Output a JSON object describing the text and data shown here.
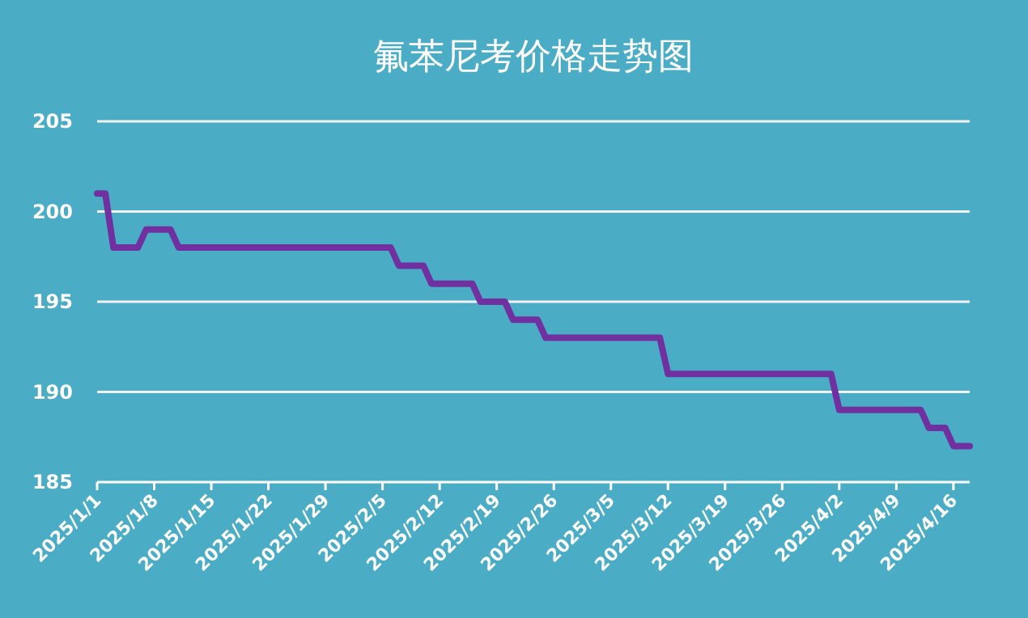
{
  "chart_data": {
    "type": "line",
    "title": "氟苯尼考价格走势图",
    "x": [
      "2025-01-01",
      "2025-01-02",
      "2025-01-03",
      "2025-01-06",
      "2025-01-07",
      "2025-01-10",
      "2025-01-11",
      "2025-02-06",
      "2025-02-07",
      "2025-02-10",
      "2025-02-11",
      "2025-02-16",
      "2025-02-17",
      "2025-02-20",
      "2025-02-21",
      "2025-02-24",
      "2025-02-25",
      "2025-03-11",
      "2025-03-12",
      "2025-04-01",
      "2025-04-02",
      "2025-04-12",
      "2025-04-13",
      "2025-04-15",
      "2025-04-16",
      "2025-04-18"
    ],
    "series": [
      {
        "color": "#7030a0",
        "values": [
          201,
          201,
          198,
          198,
          199,
          199,
          198,
          198,
          197,
          197,
          196,
          196,
          195,
          195,
          194,
          194,
          193,
          193,
          191,
          191,
          189,
          189,
          188,
          188,
          187,
          187
        ]
      }
    ],
    "xlim": [
      "2025-01-01",
      "2025-04-18"
    ],
    "xticks": [
      {
        "value": "2025-01-01",
        "label": "2025/1/1"
      },
      {
        "value": "2025-01-08",
        "label": "2025/1/8"
      },
      {
        "value": "2025-01-15",
        "label": "2025/1/15"
      },
      {
        "value": "2025-01-22",
        "label": "2025/1/22"
      },
      {
        "value": "2025-01-29",
        "label": "2025/1/29"
      },
      {
        "value": "2025-02-05",
        "label": "2025/2/5"
      },
      {
        "value": "2025-02-12",
        "label": "2025/2/12"
      },
      {
        "value": "2025-02-19",
        "label": "2025/2/19"
      },
      {
        "value": "2025-02-26",
        "label": "2025/2/26"
      },
      {
        "value": "2025-03-05",
        "label": "2025/3/5"
      },
      {
        "value": "2025-03-12",
        "label": "2025/3/12"
      },
      {
        "value": "2025-03-19",
        "label": "2025/3/19"
      },
      {
        "value": "2025-03-26",
        "label": "2025/3/26"
      },
      {
        "value": "2025-04-02",
        "label": "2025/4/2"
      },
      {
        "value": "2025-04-09",
        "label": "2025/4/9"
      },
      {
        "value": "2025-04-16",
        "label": "2025/4/16"
      }
    ],
    "ylim": [
      185,
      205
    ],
    "yticks": [
      185,
      190,
      195,
      200,
      205
    ],
    "grid": "y",
    "marker": "none",
    "line_style": "solid"
  }
}
